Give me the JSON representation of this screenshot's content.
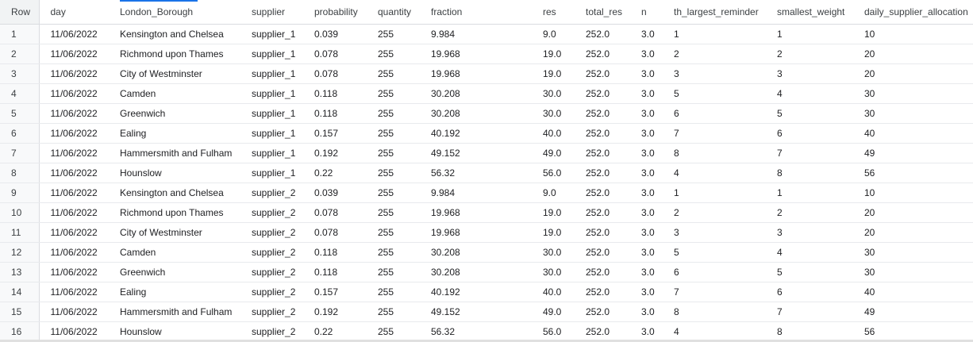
{
  "table": {
    "columns": [
      "Row",
      "day",
      "London_Borough",
      "supplier",
      "probability",
      "quantity",
      "fraction",
      "res",
      "total_res",
      "n",
      "th_largest_reminder",
      "smallest_weight",
      "daily_supplier_allocation"
    ],
    "rows": [
      [
        "1",
        "11/06/2022",
        "Kensington and Chelsea",
        "supplier_1",
        "0.039",
        "255",
        "9.984",
        "9.0",
        "252.0",
        "3.0",
        "1",
        "1",
        "10"
      ],
      [
        "2",
        "11/06/2022",
        "Richmond upon Thames",
        "supplier_1",
        "0.078",
        "255",
        "19.968",
        "19.0",
        "252.0",
        "3.0",
        "2",
        "2",
        "20"
      ],
      [
        "3",
        "11/06/2022",
        "City of Westminster",
        "supplier_1",
        "0.078",
        "255",
        "19.968",
        "19.0",
        "252.0",
        "3.0",
        "3",
        "3",
        "20"
      ],
      [
        "4",
        "11/06/2022",
        "Camden",
        "supplier_1",
        "0.118",
        "255",
        "30.208",
        "30.0",
        "252.0",
        "3.0",
        "5",
        "4",
        "30"
      ],
      [
        "5",
        "11/06/2022",
        "Greenwich",
        "supplier_1",
        "0.118",
        "255",
        "30.208",
        "30.0",
        "252.0",
        "3.0",
        "6",
        "5",
        "30"
      ],
      [
        "6",
        "11/06/2022",
        "Ealing",
        "supplier_1",
        "0.157",
        "255",
        "40.192",
        "40.0",
        "252.0",
        "3.0",
        "7",
        "6",
        "40"
      ],
      [
        "7",
        "11/06/2022",
        "Hammersmith and Fulham",
        "supplier_1",
        "0.192",
        "255",
        "49.152",
        "49.0",
        "252.0",
        "3.0",
        "8",
        "7",
        "49"
      ],
      [
        "8",
        "11/06/2022",
        "Hounslow",
        "supplier_1",
        "0.22",
        "255",
        "56.32",
        "56.0",
        "252.0",
        "3.0",
        "4",
        "8",
        "56"
      ],
      [
        "9",
        "11/06/2022",
        "Kensington and Chelsea",
        "supplier_2",
        "0.039",
        "255",
        "9.984",
        "9.0",
        "252.0",
        "3.0",
        "1",
        "1",
        "10"
      ],
      [
        "10",
        "11/06/2022",
        "Richmond upon Thames",
        "supplier_2",
        "0.078",
        "255",
        "19.968",
        "19.0",
        "252.0",
        "3.0",
        "2",
        "2",
        "20"
      ],
      [
        "11",
        "11/06/2022",
        "City of Westminster",
        "supplier_2",
        "0.078",
        "255",
        "19.968",
        "19.0",
        "252.0",
        "3.0",
        "3",
        "3",
        "20"
      ],
      [
        "12",
        "11/06/2022",
        "Camden",
        "supplier_2",
        "0.118",
        "255",
        "30.208",
        "30.0",
        "252.0",
        "3.0",
        "5",
        "4",
        "30"
      ],
      [
        "13",
        "11/06/2022",
        "Greenwich",
        "supplier_2",
        "0.118",
        "255",
        "30.208",
        "30.0",
        "252.0",
        "3.0",
        "6",
        "5",
        "30"
      ],
      [
        "14",
        "11/06/2022",
        "Ealing",
        "supplier_2",
        "0.157",
        "255",
        "40.192",
        "40.0",
        "252.0",
        "3.0",
        "7",
        "6",
        "40"
      ],
      [
        "15",
        "11/06/2022",
        "Hammersmith and Fulham",
        "supplier_2",
        "0.192",
        "255",
        "49.152",
        "49.0",
        "252.0",
        "3.0",
        "8",
        "7",
        "49"
      ],
      [
        "16",
        "11/06/2022",
        "Hounslow",
        "supplier_2",
        "0.22",
        "255",
        "56.32",
        "56.0",
        "252.0",
        "3.0",
        "4",
        "8",
        "56"
      ]
    ]
  },
  "colors": {
    "header_accent": "#1a73e8",
    "row_number_bg": "#f8f9fa",
    "border": "#e8eaed",
    "text": "#202124"
  }
}
